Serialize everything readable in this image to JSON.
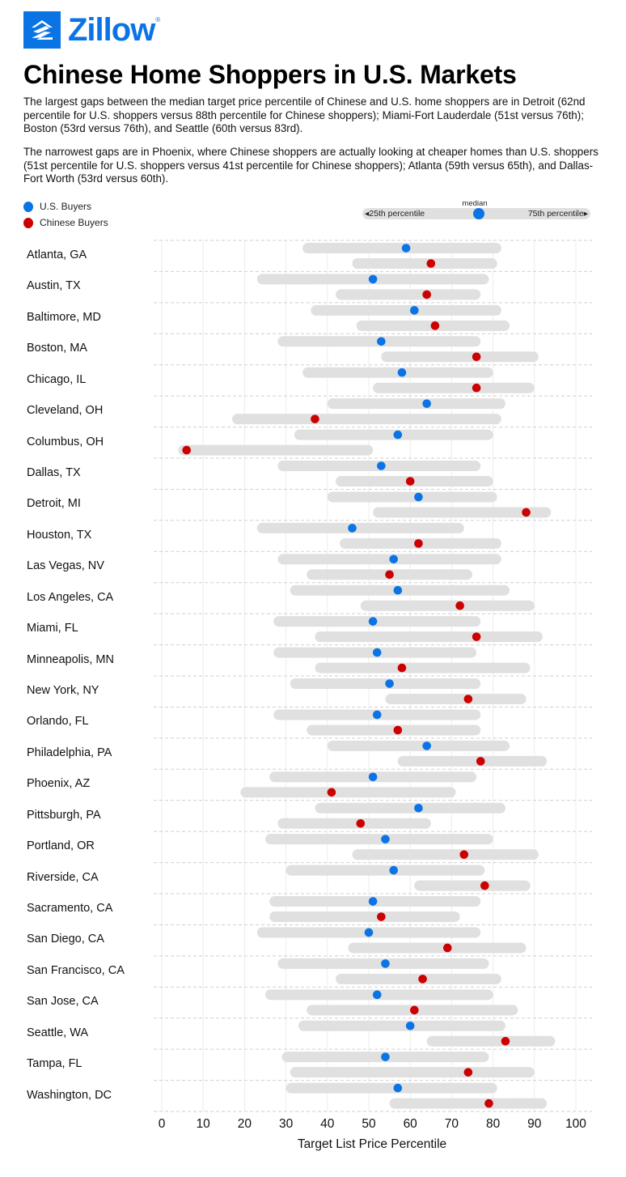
{
  "brand": {
    "logo_icon": "zillow-house-icon",
    "name": "Zillow",
    "registered_mark": "®",
    "color": "#0b74e5"
  },
  "title": "Chinese Home Shoppers in U.S. Markets",
  "description": [
    "The largest gaps between the median target price percentile of Chinese and U.S. home shoppers are in Detroit (62nd percentile for U.S. shoppers versus 88th percentile for Chinese shoppers); Miami-Fort Lauderdale (51st versus 76th); Boston (53rd versus 76th), and Seattle (60th versus 83rd).",
    "The narrowest gaps are in Phoenix, where Chinese shoppers are actually looking at cheaper homes than U.S. shoppers (51st percentile for U.S. shoppers versus 41st percentile for Chinese shoppers); Atlanta (59th versus 65th), and Dallas-Fort Worth (53rd versus 60th)."
  ],
  "legend": {
    "items": [
      {
        "label": "U.S. Buyers",
        "color": "#0b74e5"
      },
      {
        "label": "Chinese Buyers",
        "color": "#cc0000"
      }
    ],
    "key": {
      "median_label": "median",
      "left_label": "◂25th percentile",
      "right_label": "75th percentile▸"
    }
  },
  "chart_data": {
    "type": "range-dot",
    "title": "Chinese Home Shoppers in U.S. Markets",
    "xlabel": "Target List Price Percentile",
    "ylabel": "",
    "xlim": [
      0,
      100
    ],
    "xticks": [
      0,
      10,
      20,
      30,
      40,
      50,
      60,
      70,
      80,
      90,
      100
    ],
    "grid": true,
    "legend_position": "top-left",
    "bar_color": "#e0e0e0",
    "series": [
      {
        "name": "U.S. Buyers",
        "color": "#0b74e5",
        "fields": [
          "p25",
          "median",
          "p75"
        ]
      },
      {
        "name": "Chinese Buyers",
        "color": "#cc0000",
        "fields": [
          "p25",
          "median",
          "p75"
        ]
      }
    ],
    "categories": [
      {
        "city": "Atlanta, GA",
        "us": [
          34,
          59,
          82
        ],
        "cn": [
          46,
          65,
          81
        ]
      },
      {
        "city": "Austin, TX",
        "us": [
          23,
          51,
          79
        ],
        "cn": [
          42,
          64,
          77
        ]
      },
      {
        "city": "Baltimore, MD",
        "us": [
          36,
          61,
          82
        ],
        "cn": [
          47,
          66,
          84
        ]
      },
      {
        "city": "Boston, MA",
        "us": [
          28,
          53,
          77
        ],
        "cn": [
          53,
          76,
          91
        ]
      },
      {
        "city": "Chicago, IL",
        "us": [
          34,
          58,
          80
        ],
        "cn": [
          51,
          76,
          90
        ]
      },
      {
        "city": "Cleveland, OH",
        "us": [
          40,
          64,
          83
        ],
        "cn": [
          17,
          37,
          82
        ]
      },
      {
        "city": "Columbus, OH",
        "us": [
          32,
          57,
          80
        ],
        "cn": [
          4,
          6,
          51
        ]
      },
      {
        "city": "Dallas, TX",
        "us": [
          28,
          53,
          77
        ],
        "cn": [
          42,
          60,
          80
        ]
      },
      {
        "city": "Detroit, MI",
        "us": [
          40,
          62,
          81
        ],
        "cn": [
          51,
          88,
          94
        ]
      },
      {
        "city": "Houston, TX",
        "us": [
          23,
          46,
          73
        ],
        "cn": [
          43,
          62,
          82
        ]
      },
      {
        "city": "Las Vegas, NV",
        "us": [
          28,
          56,
          82
        ],
        "cn": [
          35,
          55,
          75
        ]
      },
      {
        "city": "Los Angeles, CA",
        "us": [
          31,
          57,
          84
        ],
        "cn": [
          48,
          72,
          90
        ]
      },
      {
        "city": "Miami, FL",
        "us": [
          27,
          51,
          77
        ],
        "cn": [
          37,
          76,
          92
        ]
      },
      {
        "city": "Minneapolis, MN",
        "us": [
          27,
          52,
          76
        ],
        "cn": [
          37,
          58,
          89
        ]
      },
      {
        "city": "New York, NY",
        "us": [
          31,
          55,
          77
        ],
        "cn": [
          54,
          74,
          88
        ]
      },
      {
        "city": "Orlando, FL",
        "us": [
          27,
          52,
          77
        ],
        "cn": [
          35,
          57,
          77
        ]
      },
      {
        "city": "Philadelphia, PA",
        "us": [
          40,
          64,
          84
        ],
        "cn": [
          57,
          77,
          93
        ]
      },
      {
        "city": "Phoenix, AZ",
        "us": [
          26,
          51,
          76
        ],
        "cn": [
          19,
          41,
          71
        ]
      },
      {
        "city": "Pittsburgh, PA",
        "us": [
          37,
          62,
          83
        ],
        "cn": [
          28,
          48,
          65
        ]
      },
      {
        "city": "Portland, OR",
        "us": [
          25,
          54,
          80
        ],
        "cn": [
          46,
          73,
          91
        ]
      },
      {
        "city": "Riverside, CA",
        "us": [
          30,
          56,
          78
        ],
        "cn": [
          61,
          78,
          89
        ]
      },
      {
        "city": "Sacramento, CA",
        "us": [
          26,
          51,
          77
        ],
        "cn": [
          26,
          53,
          72
        ]
      },
      {
        "city": "San Diego, CA",
        "us": [
          23,
          50,
          77
        ],
        "cn": [
          45,
          69,
          88
        ]
      },
      {
        "city": "San Francisco, CA",
        "us": [
          28,
          54,
          79
        ],
        "cn": [
          42,
          63,
          82
        ]
      },
      {
        "city": "San Jose, CA",
        "us": [
          25,
          52,
          80
        ],
        "cn": [
          35,
          61,
          86
        ]
      },
      {
        "city": "Seattle, WA",
        "us": [
          33,
          60,
          83
        ],
        "cn": [
          64,
          83,
          95
        ]
      },
      {
        "city": "Tampa, FL",
        "us": [
          29,
          54,
          79
        ],
        "cn": [
          31,
          74,
          90
        ]
      },
      {
        "city": "Washington, DC",
        "us": [
          30,
          57,
          81
        ],
        "cn": [
          55,
          79,
          93
        ]
      }
    ]
  }
}
